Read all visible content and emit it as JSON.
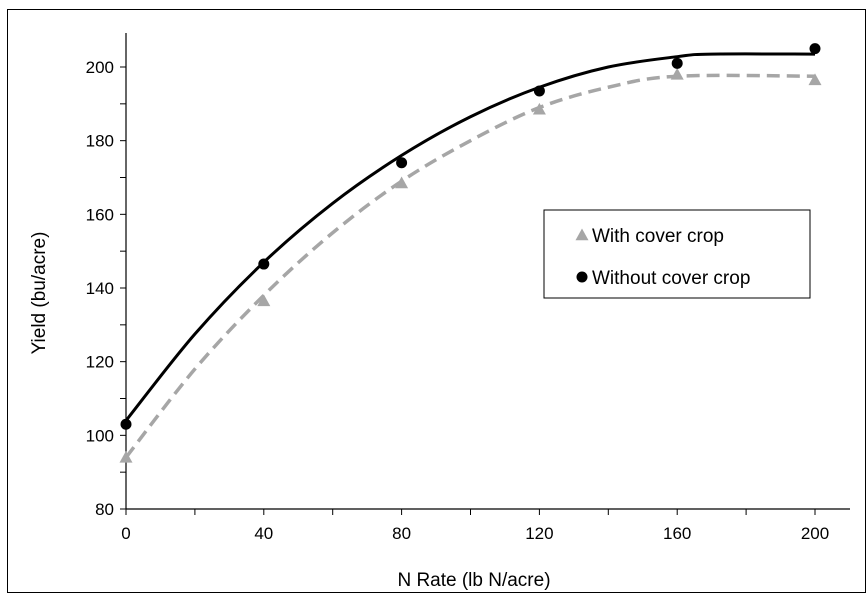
{
  "chart_data": {
    "type": "scatter",
    "title": "",
    "xlabel": "N Rate (lb N/acre)",
    "ylabel": "Yield (bu/acre)",
    "xlim": [
      0,
      210
    ],
    "ylim": [
      80,
      210
    ],
    "xticks": [
      0,
      40,
      80,
      120,
      160,
      200
    ],
    "yticks": [
      80,
      100,
      120,
      140,
      160,
      180,
      200
    ],
    "grid": false,
    "legend_position": "right",
    "series": [
      {
        "name": "With cover crop",
        "marker": "triangle",
        "color": "#a6a6a6",
        "points": [
          [
            0,
            94
          ],
          [
            40,
            136.5
          ],
          [
            80,
            168.5
          ],
          [
            120,
            188.5
          ],
          [
            160,
            198
          ],
          [
            200,
            196.5
          ]
        ],
        "fit_line": {
          "style": "dashed",
          "points": [
            [
              0,
              94
            ],
            [
              20,
              118
            ],
            [
              40,
              138
            ],
            [
              60,
              155
            ],
            [
              80,
              169
            ],
            [
              100,
              180
            ],
            [
              120,
              189
            ],
            [
              140,
              194.5
            ],
            [
              160,
              197.5
            ],
            [
              200,
              197.5
            ]
          ]
        }
      },
      {
        "name": "Without cover crop",
        "marker": "circle",
        "color": "#000000",
        "points": [
          [
            0,
            103
          ],
          [
            40,
            146.5
          ],
          [
            80,
            174
          ],
          [
            120,
            193.5
          ],
          [
            160,
            201
          ],
          [
            200,
            205
          ]
        ],
        "fit_line": {
          "style": "solid",
          "points": [
            [
              0,
              104
            ],
            [
              20,
              127.5
            ],
            [
              40,
              147
            ],
            [
              60,
              163
            ],
            [
              80,
              176
            ],
            [
              100,
              186.5
            ],
            [
              120,
              194.5
            ],
            [
              140,
              200
            ],
            [
              160,
              202.8
            ],
            [
              170,
              203.5
            ],
            [
              200,
              203.5
            ]
          ]
        }
      }
    ]
  }
}
